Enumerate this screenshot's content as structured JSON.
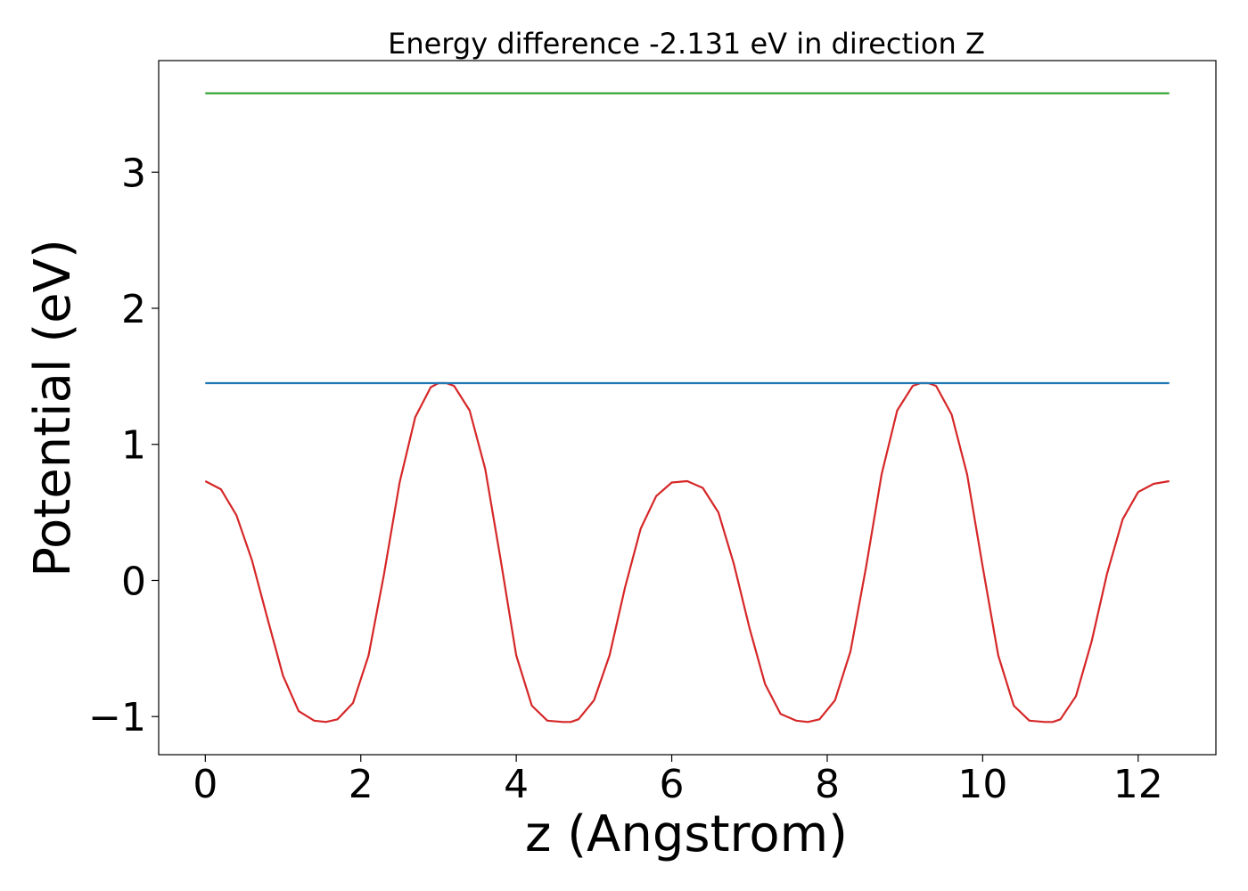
{
  "chart_data": {
    "type": "line",
    "title": "Energy difference -2.131 eV in direction Z",
    "xlabel": "z (Angstrom)",
    "ylabel": "Potential (eV)",
    "xlim": [
      -0.6,
      13.0
    ],
    "ylim": [
      -1.28,
      3.82
    ],
    "xticks": [
      0,
      2,
      4,
      6,
      8,
      10,
      12
    ],
    "xtick_labels": [
      "0",
      "2",
      "4",
      "6",
      "8",
      "10",
      "12"
    ],
    "yticks": [
      -1,
      0,
      1,
      2,
      3
    ],
    "ytick_labels": [
      "−1",
      "0",
      "1",
      "2",
      "3"
    ],
    "grid": false,
    "series": [
      {
        "color": "#d62728",
        "x": [
          0,
          0.2,
          0.4,
          0.6,
          0.8,
          1.0,
          1.2,
          1.4,
          1.55,
          1.7,
          1.9,
          2.1,
          2.3,
          2.5,
          2.7,
          2.9,
          3.0,
          3.1,
          3.2,
          3.4,
          3.6,
          3.8,
          4.0,
          4.2,
          4.4,
          4.6,
          4.7,
          4.8,
          5.0,
          5.2,
          5.4,
          5.6,
          5.8,
          6.0,
          6.2,
          6.4,
          6.6,
          6.8,
          7.0,
          7.2,
          7.4,
          7.6,
          7.75,
          7.9,
          8.1,
          8.3,
          8.5,
          8.7,
          8.9,
          9.1,
          9.2,
          9.3,
          9.4,
          9.6,
          9.8,
          10.0,
          10.2,
          10.4,
          10.6,
          10.8,
          10.9,
          11.0,
          11.2,
          11.4,
          11.6,
          11.8,
          12.0,
          12.2,
          12.4
        ],
        "y": [
          0.73,
          0.67,
          0.48,
          0.15,
          -0.28,
          -0.7,
          -0.96,
          -1.03,
          -1.04,
          -1.02,
          -0.9,
          -0.55,
          0.05,
          0.72,
          1.2,
          1.42,
          1.45,
          1.45,
          1.43,
          1.25,
          0.82,
          0.15,
          -0.55,
          -0.92,
          -1.03,
          -1.04,
          -1.04,
          -1.02,
          -0.88,
          -0.55,
          -0.05,
          0.38,
          0.62,
          0.72,
          0.73,
          0.68,
          0.5,
          0.12,
          -0.35,
          -0.76,
          -0.98,
          -1.03,
          -1.04,
          -1.02,
          -0.88,
          -0.52,
          0.1,
          0.78,
          1.25,
          1.43,
          1.45,
          1.45,
          1.43,
          1.22,
          0.78,
          0.1,
          -0.55,
          -0.92,
          -1.03,
          -1.04,
          -1.04,
          -1.02,
          -0.85,
          -0.45,
          0.05,
          0.45,
          0.65,
          0.71,
          0.73
        ]
      },
      {
        "color": "#1f77b4",
        "x": [
          0,
          12.4
        ],
        "y": [
          1.45,
          1.45
        ]
      },
      {
        "color": "#2ca02c",
        "x": [
          0,
          12.4
        ],
        "y": [
          3.58,
          3.58
        ]
      }
    ]
  }
}
